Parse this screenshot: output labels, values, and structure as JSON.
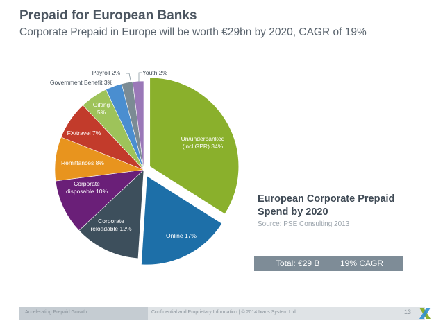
{
  "slide": {
    "title": "Prepaid for European Banks",
    "subtitle": "Corporate Prepaid in Europe will be worth €29bn by 2020, CAGR of 19%",
    "side_title": "European Corporate Prepaid Spend by 2020",
    "source": "Source: PSE Consulting 2013",
    "total": "Total: €29 B",
    "cagr": "19% CAGR"
  },
  "footer": {
    "left": "Accelerating Prepaid Growth",
    "center": "Confidential and Proprietary Information  |  © 2014 Ixaris System Ltd",
    "page": "13"
  },
  "colors": {
    "rule": "#8ab030",
    "total_bar": "#7e8c97"
  },
  "chart_data": {
    "type": "pie",
    "title": "",
    "slices": [
      {
        "label": "Un/underbanked (incl GPR) 34%",
        "value": 34,
        "color": "#8ab02c",
        "exploded": true
      },
      {
        "label": "Online 17%",
        "value": 17,
        "color": "#1d6fa8",
        "exploded": true
      },
      {
        "label": "Corporate reloadable 12%",
        "value": 12,
        "color": "#3d4f5c",
        "exploded": false
      },
      {
        "label": "Corporate disposable 10%",
        "value": 10,
        "color": "#6a1f78",
        "exploded": false
      },
      {
        "label": "Remittances 8%",
        "value": 8,
        "color": "#e8941e",
        "exploded": false
      },
      {
        "label": "FX/travel 7%",
        "value": 7,
        "color": "#c23b2b",
        "exploded": false
      },
      {
        "label": "Gifting 5%",
        "value": 5,
        "color": "#9ec35a",
        "exploded": false
      },
      {
        "label": "Government Benefit 3%",
        "value": 3,
        "color": "#4a8ed0",
        "exploded": false
      },
      {
        "label": "Payroll 2%",
        "value": 2,
        "color": "#7b8b94",
        "exploded": false
      },
      {
        "label": "Youth 2%",
        "value": 2,
        "color": "#9a78b8",
        "exploded": false
      }
    ]
  }
}
